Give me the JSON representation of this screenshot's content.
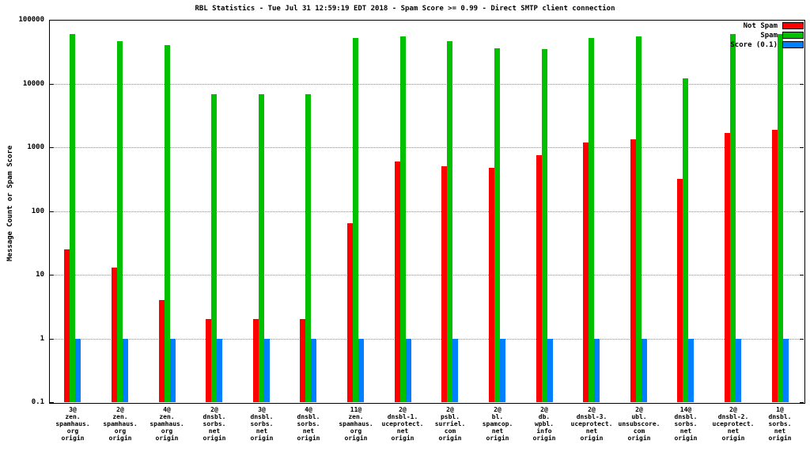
{
  "title": "RBL Statistics - Tue Jul 31 12:59:19 EDT 2018 - Spam Score >= 0.99 - Direct SMTP client connection",
  "chart_data": {
    "type": "bar",
    "yscale": "log",
    "ylim": [
      0.1,
      100000
    ],
    "ylabel": "Message Count or Spam Score",
    "yticks": [
      "0.1",
      "1",
      "10",
      "100",
      "1000",
      "10000",
      "100000"
    ],
    "grid": true,
    "legend_position": "top-right",
    "categories": [
      [
        "3@",
        "zen.",
        "spamhaus.",
        "org",
        "origin"
      ],
      [
        "2@",
        "zen.",
        "spamhaus.",
        "org",
        "origin"
      ],
      [
        "4@",
        "zen.",
        "spamhaus.",
        "org",
        "origin"
      ],
      [
        "2@",
        "dnsbl.",
        "sorbs.",
        "net",
        "origin"
      ],
      [
        "3@",
        "dnsbl.",
        "sorbs.",
        "net",
        "origin"
      ],
      [
        "4@",
        "dnsbl.",
        "sorbs.",
        "net",
        "origin"
      ],
      [
        "11@",
        "zen.",
        "spamhaus.",
        "org",
        "origin"
      ],
      [
        "2@",
        "dnsbl-1.",
        "uceprotect.",
        "net",
        "origin"
      ],
      [
        "2@",
        "psbl.",
        "surriel.",
        "com",
        "origin"
      ],
      [
        "2@",
        "bl.",
        "spamcop.",
        "net",
        "origin"
      ],
      [
        "2@",
        "db.",
        "wpbl.",
        "info",
        "origin"
      ],
      [
        "2@",
        "dnsbl-3.",
        "uceprotect.",
        "net",
        "origin"
      ],
      [
        "2@",
        "ubl.",
        "unsubscore.",
        "com",
        "origin"
      ],
      [
        "14@",
        "dnsbl.",
        "sorbs.",
        "net",
        "origin"
      ],
      [
        "2@",
        "dnsbl-2.",
        "uceprotect.",
        "net",
        "origin"
      ],
      [
        "1@",
        "dnsbl.",
        "sorbs.",
        "net",
        "origin"
      ]
    ],
    "series": [
      {
        "name": "Not Spam",
        "color": "#ff0000",
        "values": [
          25,
          13,
          4,
          2,
          2,
          2,
          65,
          600,
          510,
          470,
          750,
          1200,
          1350,
          320,
          1650,
          1900
        ]
      },
      {
        "name": "Spam",
        "color": "#00c000",
        "values": [
          60000,
          46000,
          40000,
          6800,
          6800,
          6800,
          52000,
          55000,
          46000,
          36000,
          35000,
          52000,
          55000,
          12000,
          60000,
          59000
        ]
      },
      {
        "name": "Score (0.1)",
        "color": "#0080ff",
        "values": [
          1,
          1,
          1,
          1,
          1,
          1,
          1,
          1,
          1,
          1,
          1,
          1,
          1,
          1,
          1,
          1
        ]
      }
    ]
  }
}
